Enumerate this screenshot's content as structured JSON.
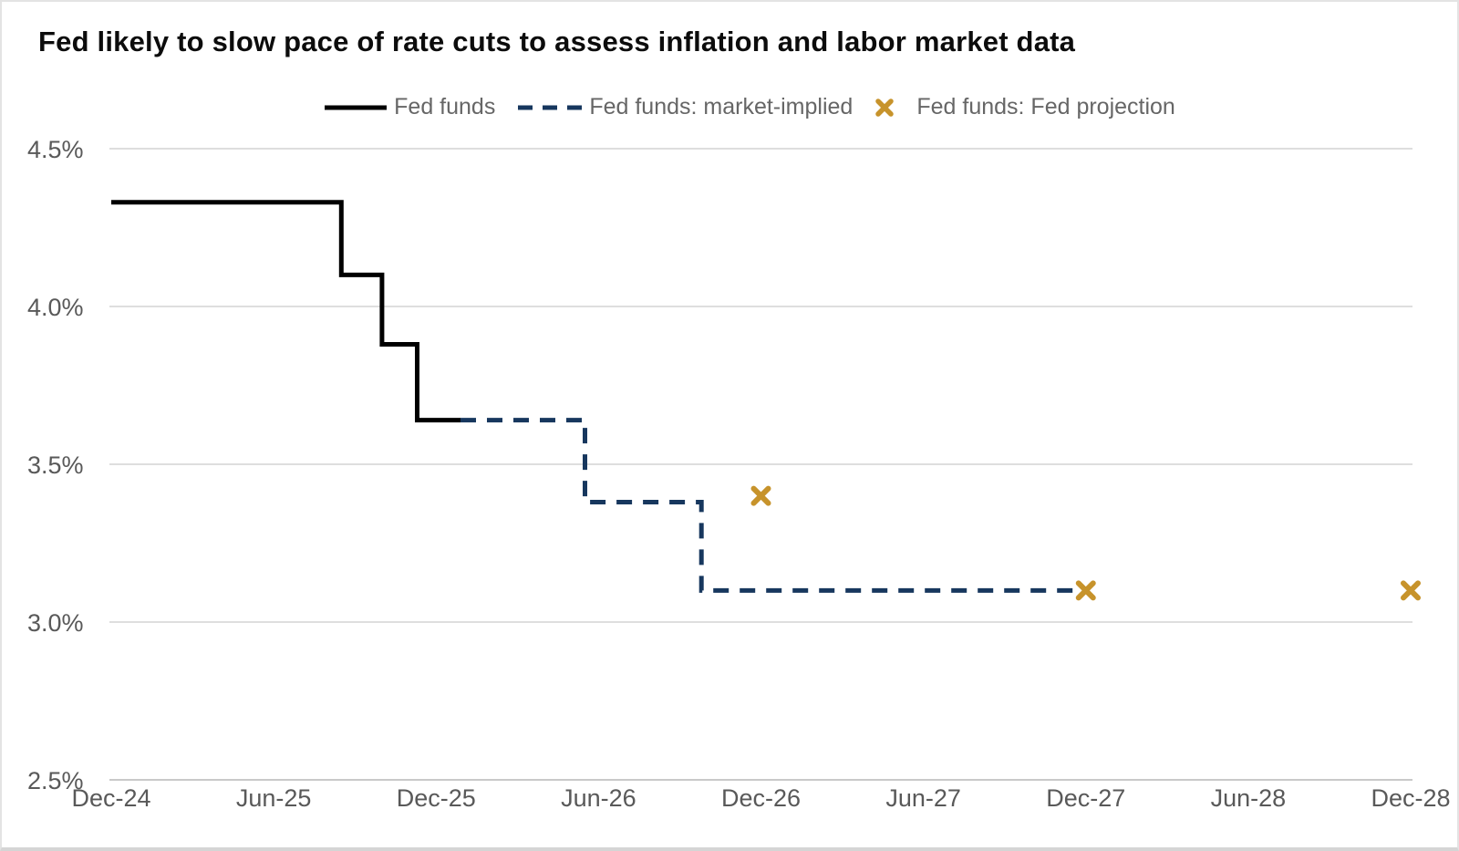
{
  "title": "Fed likely to slow pace of rate cuts to assess inflation and labor market data",
  "legend": [
    {
      "label": "Fed funds",
      "swatch": "solid-line",
      "color": "#000000"
    },
    {
      "label": "Fed funds: market-implied",
      "swatch": "dashed-line",
      "color": "#17375E"
    },
    {
      "label": "Fed funds: Fed projection",
      "swatch": "x-marker",
      "color": "#C7932B"
    }
  ],
  "colors": {
    "title_text": "#0c0c0c",
    "legend_text": "#666666",
    "axis_text": "#595959",
    "gridline": "#dedede",
    "baseline": "#c9c9c9"
  },
  "chart_data": {
    "type": "line",
    "title": "Fed likely to slow pace of rate cuts to assess inflation and labor market data",
    "xlabel": "",
    "ylabel": "",
    "x_unit": "months since Dec-2024",
    "x_tick_labels": [
      "Dec-24",
      "Jun-25",
      "Dec-25",
      "Jun-26",
      "Dec-26",
      "Jun-27",
      "Dec-27",
      "Jun-28",
      "Dec-28"
    ],
    "x_tick_months": [
      0,
      6,
      12,
      18,
      24,
      30,
      36,
      42,
      48
    ],
    "y_ticks": [
      2.5,
      3.0,
      3.5,
      4.0,
      4.5
    ],
    "y_tick_labels": [
      "2.5%",
      "3.0%",
      "3.5%",
      "4.0%",
      "4.5%"
    ],
    "ylim": [
      2.5,
      4.5
    ],
    "grid": "horizontal-only",
    "legend_position": "top-center",
    "series": [
      {
        "name": "Fed funds",
        "style": "solid",
        "color": "#000000",
        "step": true,
        "points": [
          [
            0,
            4.33
          ],
          [
            8.5,
            4.33
          ],
          [
            8.5,
            4.1
          ],
          [
            10,
            4.1
          ],
          [
            10,
            3.88
          ],
          [
            11.3,
            3.88
          ],
          [
            11.3,
            3.64
          ],
          [
            12.9,
            3.64
          ]
        ]
      },
      {
        "name": "Fed funds: market-implied",
        "style": "dashed",
        "color": "#17375E",
        "step": true,
        "points": [
          [
            12.9,
            3.64
          ],
          [
            17.5,
            3.64
          ],
          [
            17.5,
            3.38
          ],
          [
            21.8,
            3.38
          ],
          [
            21.8,
            3.1
          ],
          [
            35.6,
            3.1
          ]
        ]
      },
      {
        "name": "Fed funds: Fed projection",
        "style": "x-markers",
        "color": "#C7932B",
        "points": [
          [
            24,
            3.4
          ],
          [
            36,
            3.1
          ],
          [
            48,
            3.1
          ]
        ]
      }
    ]
  }
}
